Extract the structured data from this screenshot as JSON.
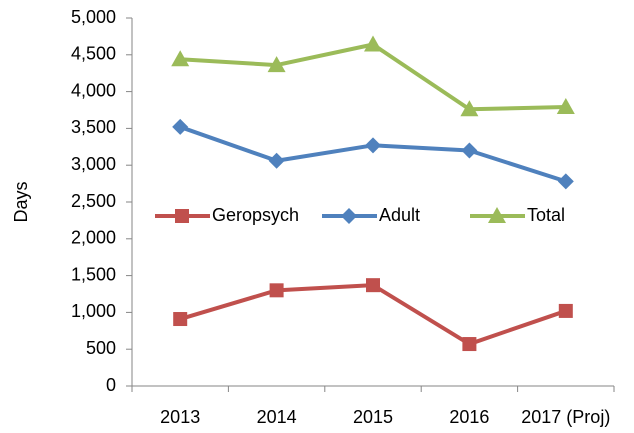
{
  "chart_data": {
    "type": "line",
    "y_label": "Days",
    "categories": [
      "2013",
      "2014",
      "2015",
      "2016",
      "2017 (Proj)"
    ],
    "series": [
      {
        "name": "Geropsych",
        "color": "#c0504d",
        "marker": "square",
        "values": [
          910,
          1300,
          1370,
          570,
          1020
        ]
      },
      {
        "name": "Adult",
        "color": "#4f81bd",
        "marker": "diamond",
        "values": [
          3520,
          3060,
          3270,
          3200,
          2780
        ]
      },
      {
        "name": "Total",
        "color": "#9bbb59",
        "marker": "triangle",
        "values": [
          4440,
          4360,
          4640,
          3760,
          3790
        ]
      }
    ],
    "ylim": [
      0,
      5000
    ],
    "yticks": [
      0,
      500,
      {
        "value": 1000,
        "label": "1,000"
      },
      {
        "value": 1500,
        "label": "1,500"
      },
      {
        "value": 2000,
        "label": "2,000"
      },
      {
        "value": 2500,
        "label": "2,500"
      },
      {
        "value": 3000,
        "label": "3,000"
      },
      {
        "value": 3500,
        "label": "3,500"
      },
      {
        "value": 4000,
        "label": "4,000"
      },
      {
        "value": 4500,
        "label": "4,500"
      },
      {
        "value": 5000,
        "label": "5,000"
      }
    ],
    "grid": false,
    "legend": "center"
  }
}
